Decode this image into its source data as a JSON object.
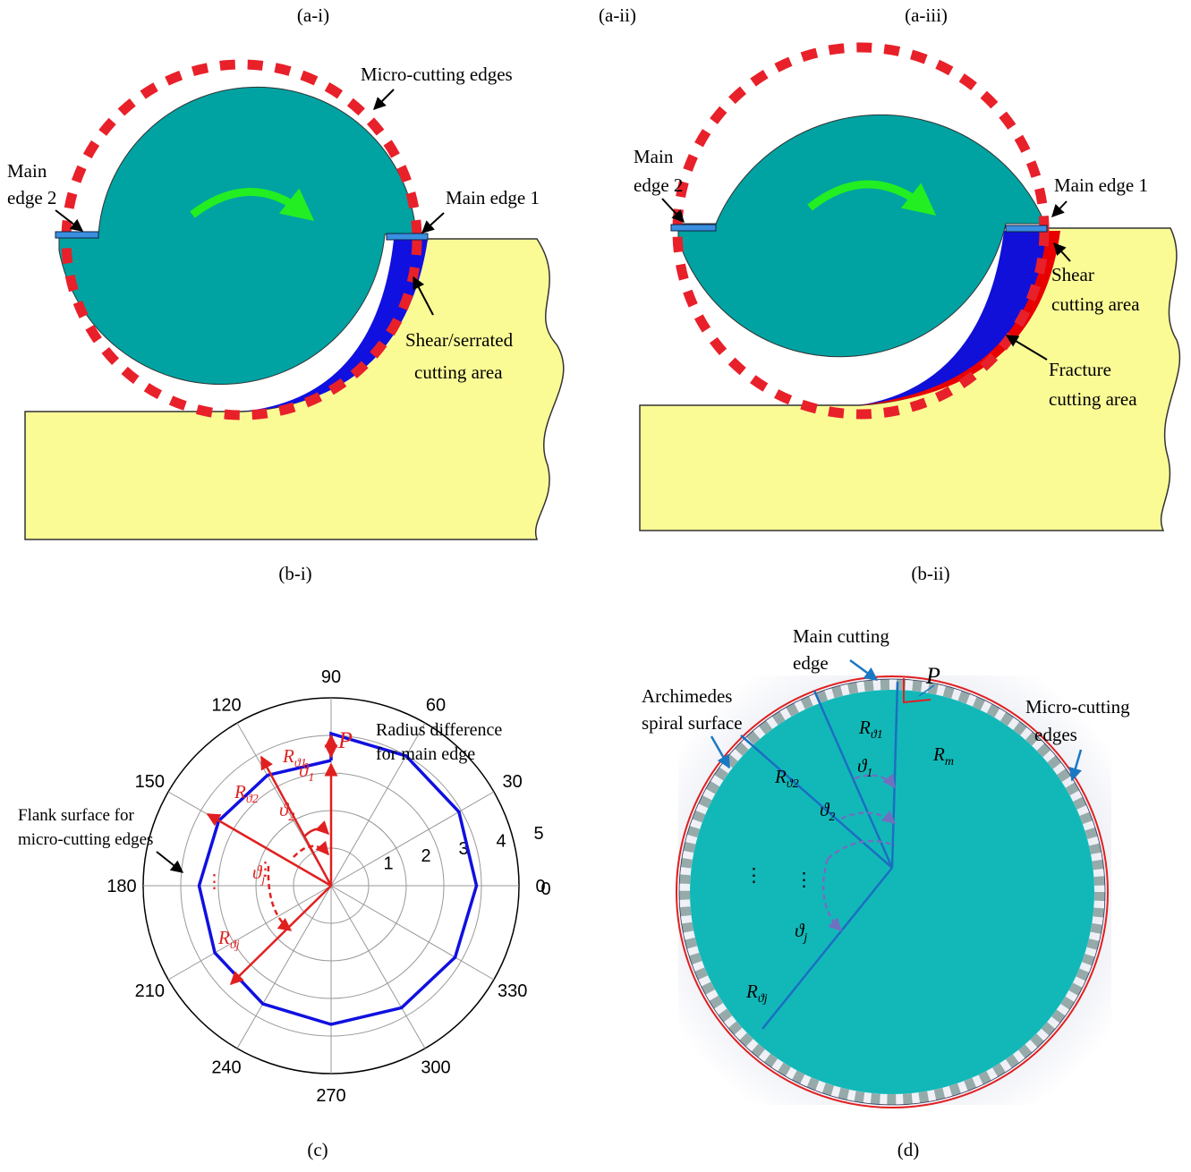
{
  "panel_labels": [
    "(a-i)",
    "(a-ii)",
    "(a-iii)",
    "(b-i)",
    "(b-ii)",
    "(c)",
    "(d)"
  ],
  "b_i": {
    "micro_edges": "Micro-cutting edges",
    "main_edge_2": [
      "Main",
      "edge 2"
    ],
    "main_edge_1": "Main edge 1",
    "area": [
      "Shear/serrated",
      "cutting area"
    ]
  },
  "b_ii": {
    "main_edge_2": [
      "Main",
      "edge 2"
    ],
    "main_edge_1": "Main edge 1",
    "shear": [
      "Shear",
      "cutting area"
    ],
    "fracture": [
      "Fracture",
      "cutting area"
    ]
  },
  "c": {
    "angle_ticks": [
      0,
      30,
      60,
      90,
      120,
      150,
      180,
      210,
      240,
      270,
      300,
      330
    ],
    "radial_ticks": [
      0,
      1,
      2,
      3,
      4,
      5
    ],
    "rlim": [
      0,
      5
    ],
    "P": "P",
    "radius_note": [
      "Radius difference",
      "for main edge"
    ],
    "flank_note": [
      "Flank surface for",
      "micro-cutting edges"
    ],
    "R1": {
      "R": "R",
      "sub": "ϑ1"
    },
    "R2": {
      "R": "R",
      "sub": "ϑ2"
    },
    "Rj": {
      "R": "R",
      "sub": "ϑj"
    },
    "t1": {
      "t": "ϑ",
      "sub": "1"
    },
    "t2": {
      "t": "ϑ",
      "sub": "2"
    },
    "tj": {
      "t": "ϑ",
      "sub": "j"
    },
    "dots": "⋮"
  },
  "d": {
    "main_cutting_edge": [
      "Main cutting",
      "edge"
    ],
    "spiral": [
      "Archimedes",
      "spiral surface"
    ],
    "micro_edges": [
      "Micro-cutting",
      "edges"
    ],
    "P": "P",
    "R1": {
      "R": "R",
      "sub": "ϑ1"
    },
    "R2": {
      "R": "R",
      "sub": "ϑ2"
    },
    "Rj": {
      "R": "R",
      "sub": "ϑj"
    },
    "Rm": {
      "R": "R",
      "sub": "m"
    },
    "t1": {
      "t": "ϑ",
      "sub": "1"
    },
    "t2": {
      "t": "ϑ",
      "sub": "2"
    },
    "tj": {
      "t": "ϑ",
      "sub": "j"
    },
    "dots": "⋮"
  }
}
